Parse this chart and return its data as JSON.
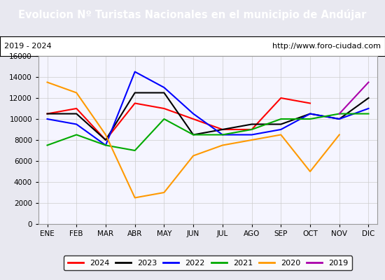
{
  "title": "Evolucion Nº Turistas Nacionales en el municipio de Andújar",
  "subtitle_left": "2019 - 2024",
  "subtitle_right": "http://www.foro-ciudad.com",
  "title_bg": "#4472c4",
  "title_color": "white",
  "months": [
    "ENE",
    "FEB",
    "MAR",
    "ABR",
    "MAY",
    "JUN",
    "JUL",
    "AGO",
    "SEP",
    "OCT",
    "NOV",
    "DIC"
  ],
  "ylim": [
    0,
    16000
  ],
  "yticks": [
    0,
    2000,
    4000,
    6000,
    8000,
    10000,
    12000,
    14000,
    16000
  ],
  "series": {
    "2024": {
      "color": "#ff0000",
      "data": [
        10500,
        11000,
        8000,
        11500,
        11000,
        10000,
        9000,
        9000,
        12000,
        11500,
        null,
        null
      ]
    },
    "2023": {
      "color": "#000000",
      "data": [
        10500,
        10500,
        8000,
        12500,
        12500,
        8500,
        9000,
        9500,
        9500,
        10500,
        10000,
        12000
      ]
    },
    "2022": {
      "color": "#0000ff",
      "data": [
        10000,
        9500,
        7500,
        14500,
        13000,
        10500,
        8500,
        8500,
        9000,
        10500,
        10000,
        11000
      ]
    },
    "2021": {
      "color": "#00aa00",
      "data": [
        7500,
        8500,
        7500,
        7000,
        10000,
        8500,
        8500,
        9000,
        10000,
        10000,
        10500,
        10500
      ]
    },
    "2020": {
      "color": "#ff9900",
      "data": [
        13500,
        12500,
        8500,
        2500,
        3000,
        6500,
        7500,
        8000,
        8500,
        5000,
        8500,
        null
      ]
    },
    "2019": {
      "color": "#aa00aa",
      "data": [
        null,
        null,
        null,
        null,
        null,
        null,
        null,
        null,
        null,
        null,
        10500,
        13500
      ]
    }
  },
  "legend_order": [
    "2024",
    "2023",
    "2022",
    "2021",
    "2020",
    "2019"
  ],
  "bg_color": "#e8e8f0",
  "plot_bg": "#f5f5ff",
  "grid_color": "#cccccc"
}
